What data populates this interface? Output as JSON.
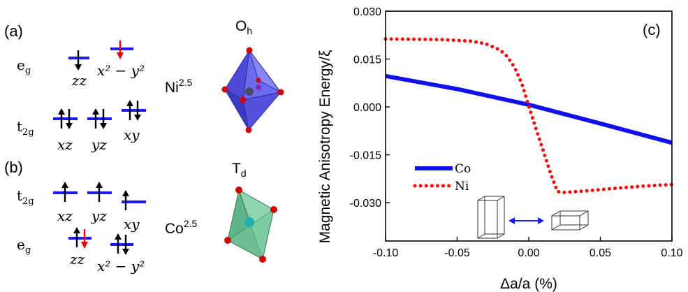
{
  "left_panel": {
    "label_a": "(a)",
    "label_b": "(b)",
    "eg": "e",
    "eg_sub": "g",
    "t2g": "t",
    "t2g_sub": "2g",
    "orbital_zz": "zz",
    "orbital_x2y2": "x² − y²",
    "orbital_xz": "xz",
    "orbital_yz": "yz",
    "orbital_xy": "xy",
    "ion_ni": "Ni",
    "ion_ni_sup": "2.5",
    "ion_co": "Co",
    "ion_co_sup": "2.5",
    "symmetry_oh": "O",
    "symmetry_oh_sub": "h",
    "symmetry_td": "T",
    "symmetry_td_sub": "d",
    "colors": {
      "level": "#1a1aff",
      "spin_down_red": "#e00000",
      "octahedron": "#5a5ae6",
      "tetrahedron": "#74c79a",
      "atom": "#d40000"
    }
  },
  "chart_data": {
    "type": "line",
    "panel_label": "(c)",
    "xlabel": "Δa/a (%)",
    "ylabel": "Magnetic Anisotropy Energy/ξ",
    "xlim": [
      -0.1,
      0.1
    ],
    "ylim": [
      -0.042,
      0.03
    ],
    "xticks": [
      -0.1,
      -0.05,
      0.0,
      0.05,
      0.1
    ],
    "xtick_labels": [
      "-0.10",
      "-0.05",
      "0.00",
      "0.05",
      "0.10"
    ],
    "yticks": [
      -0.03,
      -0.015,
      0.0,
      0.015,
      0.03
    ],
    "ytick_labels": [
      "-0.030",
      "-0.015",
      "0.000",
      "0.015",
      "0.030"
    ],
    "legend_position": "left-middle",
    "series": [
      {
        "name": "Co",
        "style": "solid",
        "color": "#1010ee",
        "x": [
          -0.1,
          -0.05,
          0.0,
          0.05,
          0.1
        ],
        "y": [
          0.0097,
          0.0056,
          0.0007,
          -0.0052,
          -0.0112
        ]
      },
      {
        "name": "Ni",
        "style": "dotted",
        "color": "#ee1010",
        "x": [
          -0.1,
          -0.08,
          -0.06,
          -0.04,
          -0.03,
          -0.02,
          -0.015,
          -0.01,
          -0.005,
          0.0,
          0.005,
          0.01,
          0.015,
          0.02,
          0.025,
          0.04,
          0.06,
          0.08,
          0.1
        ],
        "y": [
          0.0213,
          0.0212,
          0.0211,
          0.0206,
          0.0198,
          0.0178,
          0.0158,
          0.0125,
          0.0075,
          0.0003,
          -0.0068,
          -0.0135,
          -0.0205,
          -0.0265,
          -0.0268,
          -0.0263,
          -0.0255,
          -0.0248,
          -0.0243
        ]
      }
    ]
  }
}
